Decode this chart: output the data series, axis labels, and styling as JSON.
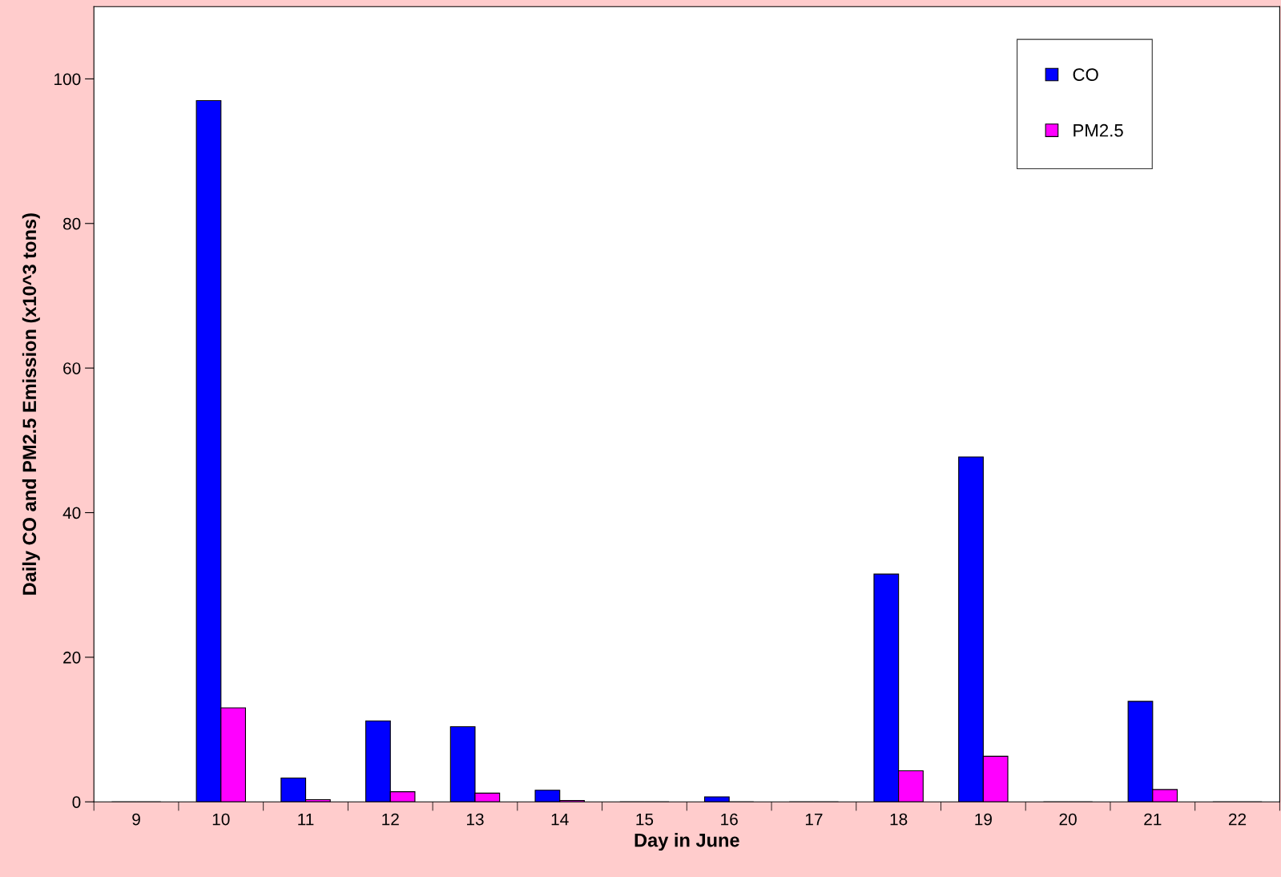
{
  "chart_data": {
    "type": "bar",
    "xlabel": "Day in June",
    "ylabel": "Daily CO and PM2.5 Emission (x10^3 tons)",
    "categories": [
      "9",
      "10",
      "11",
      "12",
      "13",
      "14",
      "15",
      "16",
      "17",
      "18",
      "19",
      "20",
      "21",
      "22"
    ],
    "series": [
      {
        "name": "CO",
        "color": "#0000ff",
        "values": [
          0,
          97,
          3.3,
          11.2,
          10.4,
          1.6,
          0,
          0.7,
          0,
          31.5,
          47.7,
          0,
          13.9,
          0
        ]
      },
      {
        "name": "PM2.5",
        "color": "#ff00ff",
        "values": [
          0,
          13,
          0.3,
          1.4,
          1.2,
          0.2,
          0,
          0,
          0,
          4.3,
          6.3,
          0,
          1.7,
          0
        ]
      }
    ],
    "ylim": [
      0,
      110
    ],
    "yticks": [
      0,
      20,
      40,
      60,
      80,
      100
    ],
    "grid": false,
    "legend": "top right"
  }
}
